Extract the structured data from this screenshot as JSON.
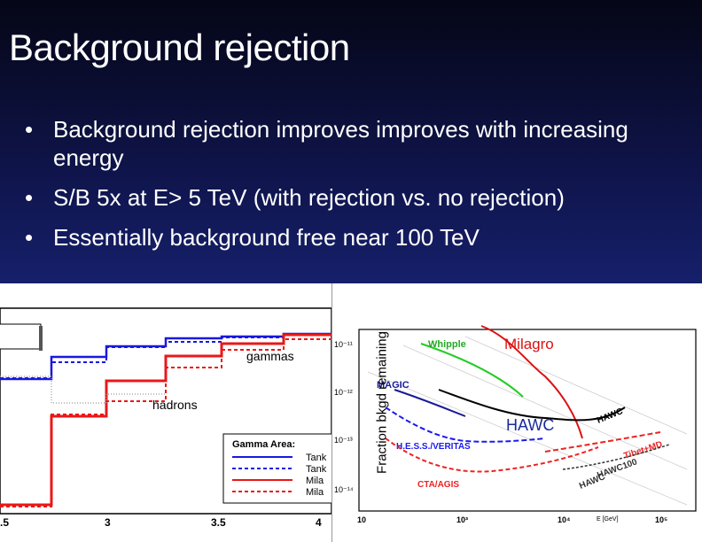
{
  "slide": {
    "title": "Background rejection",
    "bullets": [
      "Background rejection improves improves with increasing energy",
      "S/B 5x at E> 5 TeV (with rejection vs. no rejection)",
      "Essentially background free near 100 TeV"
    ],
    "bullet_glyph": "•"
  },
  "left_plot": {
    "label_gammas": "gammas",
    "label_hadrons": "hadrons",
    "legend_title": "Gamma Area:",
    "legend_items": [
      "Tank",
      "Tank",
      "Mila",
      "Mila"
    ],
    "x_ticks": [
      ".5",
      "3",
      "3.5",
      "4"
    ],
    "colors": {
      "blue": "#1818e0",
      "red": "#e81818"
    }
  },
  "right_plot": {
    "ylabel": "Fraction bkgd remaining",
    "y_ticks": [
      "10⁻¹¹",
      "10⁻¹²",
      "10⁻¹³",
      "10⁻¹⁴"
    ],
    "x_ticks": [
      "10",
      "10³",
      "10⁴",
      "10⁵"
    ],
    "x_axis_label": "E [GeV]",
    "curve_labels": {
      "whipple": "Whipple",
      "milagro": "Milagro",
      "hawc": "HAWC",
      "hawc_slanted": "HAWC",
      "hess": "H.E.S.S./VERITAS",
      "cta": "CTA/AGIS",
      "tibet": "Tibet+MD",
      "hawc100": "HAWC100",
      "hawc_lower": "HAWC",
      "magic": "MAGIC"
    },
    "colors": {
      "whipple": "#22cc22",
      "milagro": "#dd1111",
      "hawc": "#000000",
      "hess": "#1a1aee",
      "cta": "#ee2222",
      "hawc100": "#333333"
    }
  }
}
